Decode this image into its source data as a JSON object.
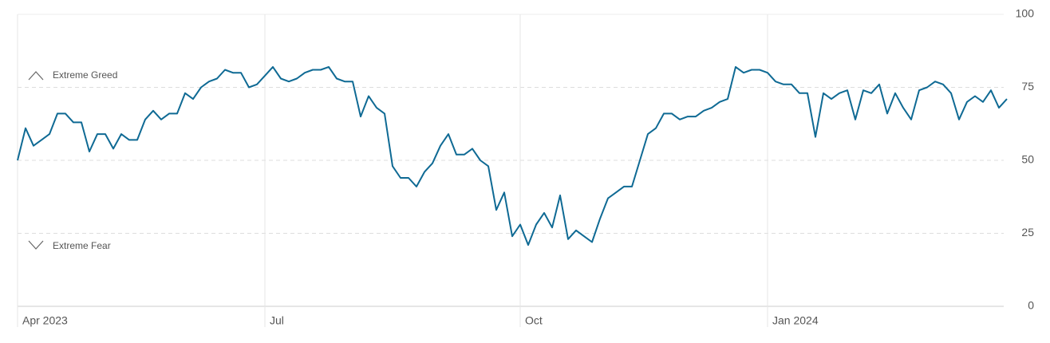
{
  "chart_data": {
    "type": "line",
    "annotations": [
      "Extreme Greed",
      "Extreme Fear"
    ],
    "categories": [
      "Apr 2023",
      null,
      null,
      null,
      null,
      null,
      null,
      null,
      null,
      null,
      null,
      null,
      null,
      null,
      null,
      null,
      null,
      null,
      null,
      null,
      null,
      null,
      null,
      null,
      null,
      null,
      null,
      null,
      null,
      null,
      null,
      "Jul",
      null,
      null,
      null,
      null,
      null,
      null,
      null,
      null,
      null,
      null,
      null,
      null,
      null,
      null,
      null,
      null,
      null,
      null,
      null,
      null,
      null,
      null,
      null,
      null,
      null,
      null,
      null,
      null,
      null,
      null,
      null,
      "Oct",
      null,
      null,
      null,
      null,
      null,
      null,
      null,
      null,
      null,
      null,
      null,
      null,
      null,
      null,
      null,
      null,
      null,
      null,
      null,
      null,
      null,
      null,
      null,
      null,
      null,
      null,
      null,
      null,
      null,
      null,
      "Jan 2024",
      null,
      null,
      null,
      null,
      null,
      null,
      null,
      null,
      null,
      null,
      null,
      null,
      null,
      null,
      null,
      null,
      null,
      null,
      null,
      null,
      null,
      null,
      null,
      null,
      null,
      null,
      null,
      null,
      null,
      null
    ],
    "values": [
      50,
      61,
      55,
      57,
      59,
      66,
      66,
      63,
      63,
      53,
      59,
      59,
      54,
      59,
      57,
      57,
      64,
      67,
      64,
      66,
      66,
      73,
      71,
      75,
      77,
      78,
      81,
      80,
      80,
      75,
      76,
      79,
      82,
      78,
      77,
      78,
      80,
      81,
      81,
      82,
      78,
      77,
      77,
      65,
      72,
      68,
      66,
      48,
      44,
      44,
      41,
      46,
      49,
      55,
      59,
      52,
      52,
      54,
      50,
      48,
      33,
      39,
      24,
      28,
      21,
      28,
      32,
      27,
      38,
      23,
      26,
      24,
      22,
      30,
      37,
      39,
      41,
      41,
      50,
      59,
      61,
      66,
      66,
      64,
      65,
      65,
      67,
      68,
      70,
      71,
      82,
      80,
      81,
      81,
      80,
      77,
      76,
      76,
      73,
      73,
      58,
      73,
      71,
      73,
      74,
      64,
      74,
      73,
      76,
      66,
      73,
      68,
      64,
      74,
      75,
      77,
      76,
      73,
      64,
      70,
      72,
      70,
      74,
      68,
      71
    ],
    "color": "#0f6a94",
    "ylim": [
      0,
      100
    ],
    "yticks": [
      0,
      25,
      50,
      75,
      100
    ],
    "grid": true
  }
}
